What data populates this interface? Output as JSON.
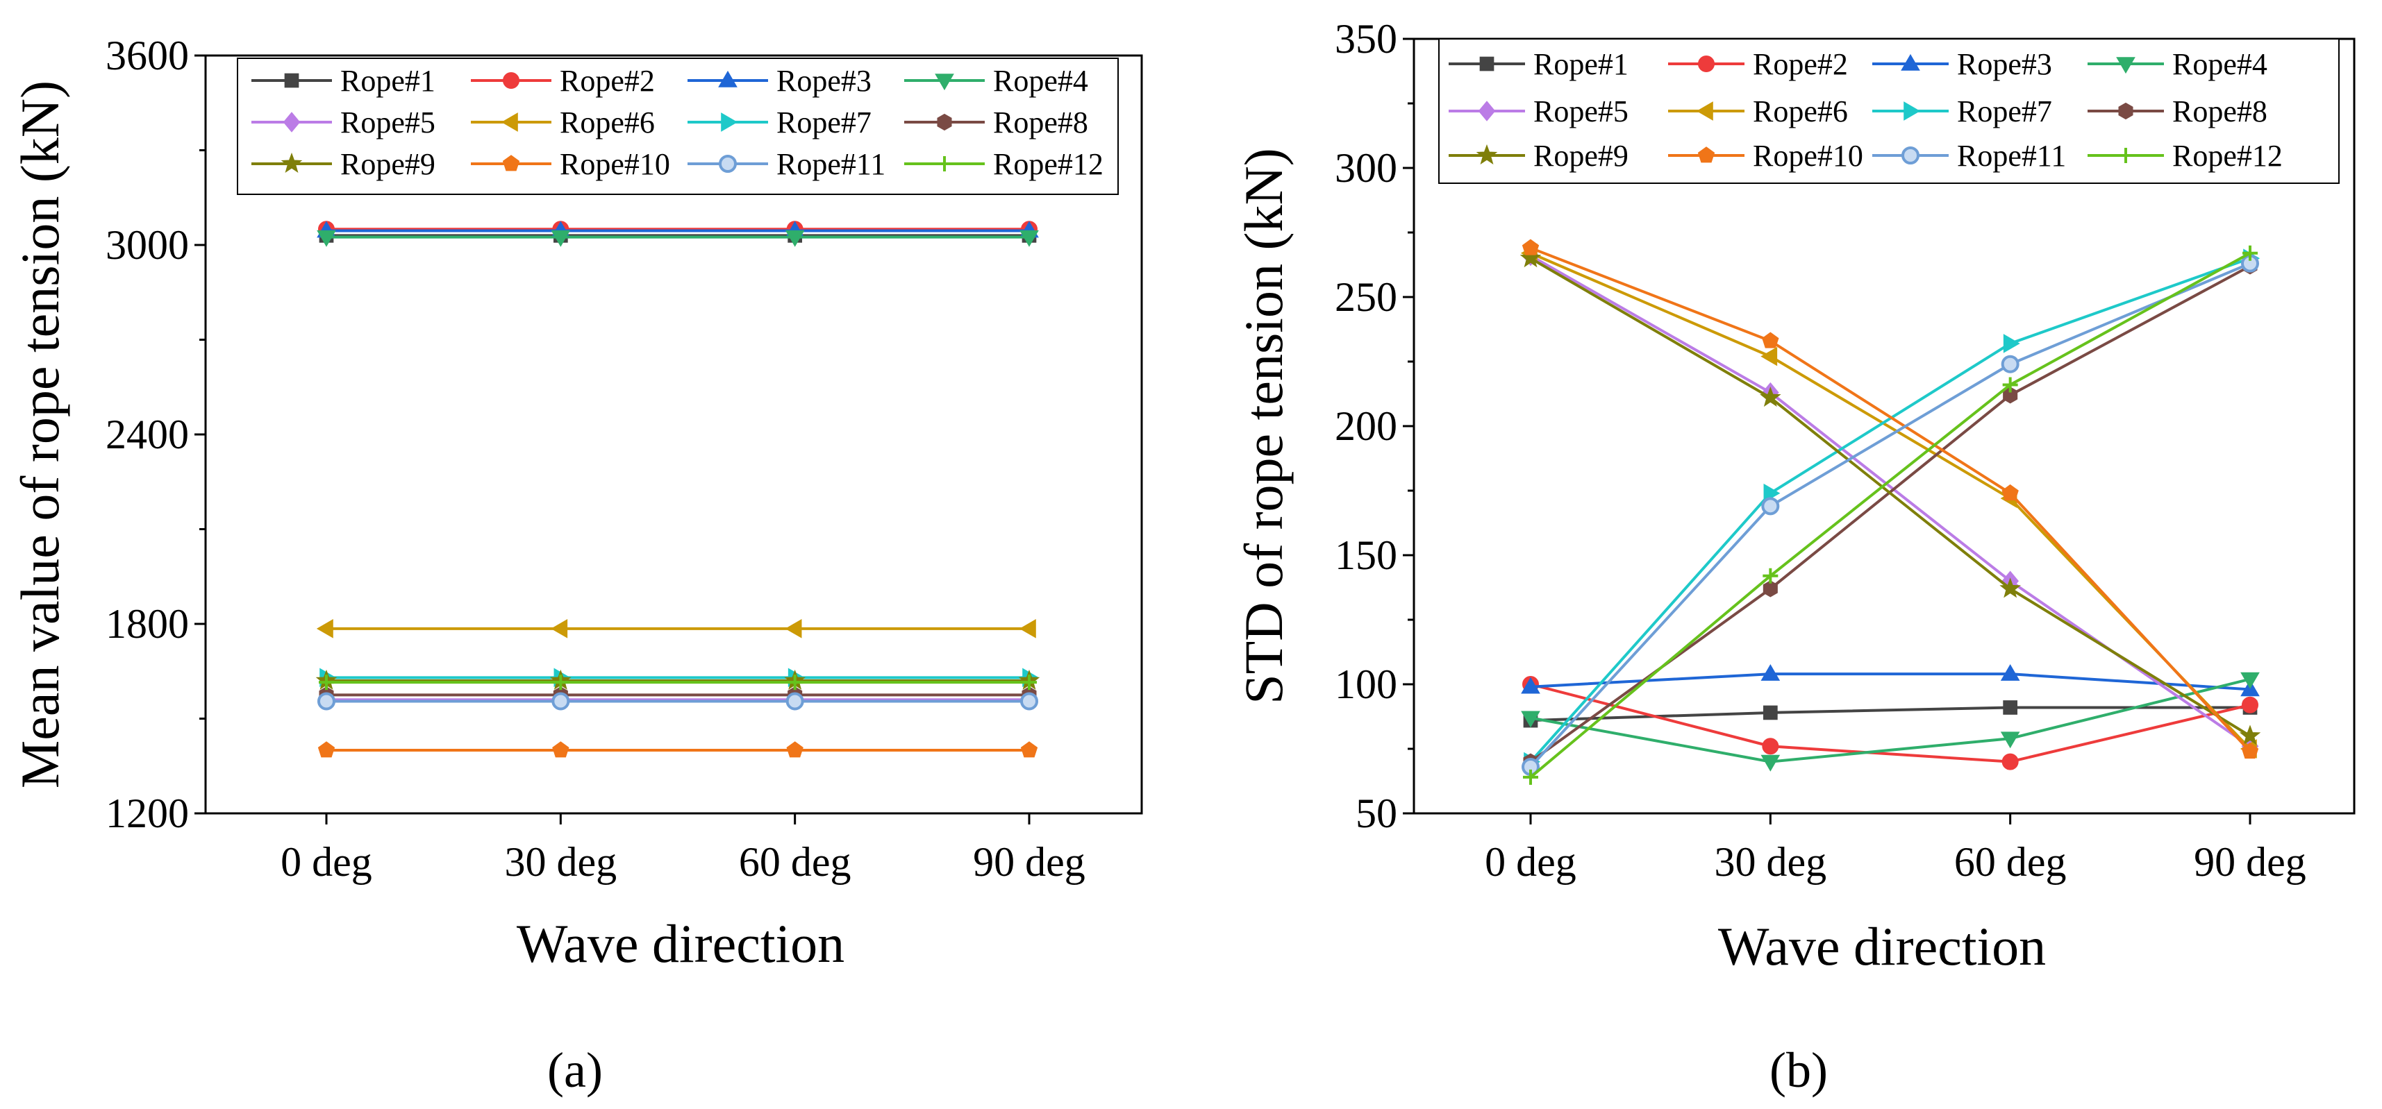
{
  "chart_data": [
    {
      "type": "line",
      "panel_label": "a",
      "title": "",
      "xlabel": "Wave direction",
      "ylabel": "Mean value of rope tension (kN)",
      "categories": [
        "0 deg",
        "30 deg",
        "60 deg",
        "90 deg"
      ],
      "ylim": [
        1200,
        3600
      ],
      "yticks": [
        1200,
        1800,
        2400,
        3000,
        3600
      ],
      "yticks_labeled": [
        "1200",
        "1800",
        "2400",
        "3000",
        "3600"
      ],
      "grid": false,
      "legend": "top, 4 columns",
      "series": [
        {
          "name": "Rope#1",
          "marker": "square",
          "color": "#444444",
          "values": [
            3030,
            3030,
            3030,
            3030
          ]
        },
        {
          "name": "Rope#2",
          "marker": "circle",
          "color": "#ee3b3b",
          "values": [
            3050,
            3050,
            3050,
            3050
          ]
        },
        {
          "name": "Rope#3",
          "marker": "triangle-up",
          "color": "#1f66d6",
          "values": [
            3045,
            3045,
            3045,
            3045
          ]
        },
        {
          "name": "Rope#4",
          "marker": "triangle-down",
          "color": "#2fae6b",
          "values": [
            3025,
            3025,
            3025,
            3025
          ]
        },
        {
          "name": "Rope#5",
          "marker": "diamond",
          "color": "#bb7ce6",
          "values": [
            1560,
            1560,
            1560,
            1560
          ]
        },
        {
          "name": "Rope#6",
          "marker": "triangle-left",
          "color": "#cc9a06",
          "values": [
            1785,
            1785,
            1785,
            1785
          ]
        },
        {
          "name": "Rope#7",
          "marker": "triangle-right",
          "color": "#1ec9c9",
          "values": [
            1630,
            1630,
            1630,
            1630
          ]
        },
        {
          "name": "Rope#8",
          "marker": "hexagon",
          "color": "#7a4a44",
          "values": [
            1575,
            1575,
            1575,
            1575
          ]
        },
        {
          "name": "Rope#9",
          "marker": "star",
          "color": "#7f7f0a",
          "values": [
            1620,
            1620,
            1620,
            1620
          ]
        },
        {
          "name": "Rope#10",
          "marker": "pentagon",
          "color": "#f07518",
          "values": [
            1400,
            1400,
            1400,
            1400
          ]
        },
        {
          "name": "Rope#11",
          "marker": "sphere",
          "color": "#6e9ed6",
          "values": [
            1555,
            1555,
            1555,
            1555
          ]
        },
        {
          "name": "Rope#12",
          "marker": "plus",
          "color": "#66c21c",
          "values": [
            1615,
            1615,
            1615,
            1615
          ]
        }
      ]
    },
    {
      "type": "line",
      "panel_label": "b",
      "title": "",
      "xlabel": "Wave direction",
      "ylabel": "STD of rope tension (kN)",
      "categories": [
        "0 deg",
        "30 deg",
        "60 deg",
        "90 deg"
      ],
      "ylim": [
        50,
        350
      ],
      "yticks": [
        50,
        100,
        150,
        200,
        250,
        300,
        350
      ],
      "yticks_labeled": [
        "50",
        "100",
        "150",
        "200",
        "250",
        "300",
        "350"
      ],
      "grid": false,
      "legend": "top, 4 columns",
      "series": [
        {
          "name": "Rope#1",
          "marker": "square",
          "color": "#444444",
          "values": [
            86,
            89,
            91,
            91
          ]
        },
        {
          "name": "Rope#2",
          "marker": "circle",
          "color": "#ee3b3b",
          "values": [
            100,
            76,
            70,
            92
          ]
        },
        {
          "name": "Rope#3",
          "marker": "triangle-up",
          "color": "#1f66d6",
          "values": [
            99,
            104,
            104,
            98
          ]
        },
        {
          "name": "Rope#4",
          "marker": "triangle-down",
          "color": "#2fae6b",
          "values": [
            87,
            70,
            79,
            102
          ]
        },
        {
          "name": "Rope#5",
          "marker": "diamond",
          "color": "#bb7ce6",
          "values": [
            266,
            213,
            140,
            76
          ]
        },
        {
          "name": "Rope#6",
          "marker": "triangle-left",
          "color": "#cc9a06",
          "values": [
            267,
            227,
            172,
            75
          ]
        },
        {
          "name": "Rope#7",
          "marker": "triangle-right",
          "color": "#1ec9c9",
          "values": [
            70,
            174,
            232,
            265
          ]
        },
        {
          "name": "Rope#8",
          "marker": "hexagon",
          "color": "#7a4a44",
          "values": [
            70,
            137,
            212,
            262
          ]
        },
        {
          "name": "Rope#9",
          "marker": "star",
          "color": "#7f7f0a",
          "values": [
            265,
            211,
            137,
            80
          ]
        },
        {
          "name": "Rope#10",
          "marker": "pentagon",
          "color": "#f07518",
          "values": [
            269,
            233,
            174,
            74
          ]
        },
        {
          "name": "Rope#11",
          "marker": "sphere",
          "color": "#6e9ed6",
          "values": [
            68,
            169,
            224,
            263
          ]
        },
        {
          "name": "Rope#12",
          "marker": "plus",
          "color": "#66c21c",
          "values": [
            64,
            142,
            216,
            267
          ]
        }
      ]
    }
  ],
  "captions": [
    "(a)",
    "(b)"
  ]
}
